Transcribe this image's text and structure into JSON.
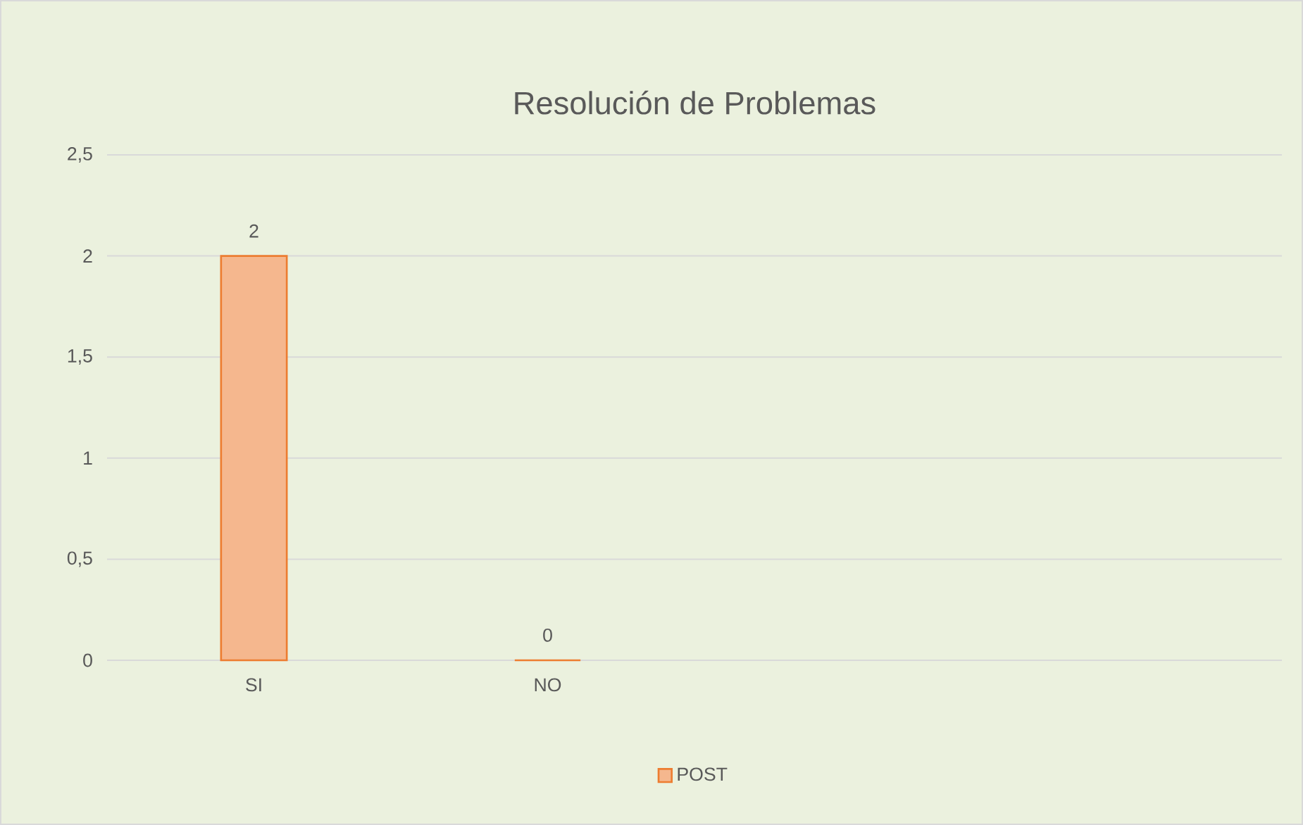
{
  "chart_data": {
    "type": "bar",
    "title": "Resolución de  Problemas",
    "categories": [
      "SI",
      "NO",
      null,
      null
    ],
    "series": [
      {
        "name": "POST",
        "color": "#ed7d31",
        "values": [
          2,
          0,
          null,
          null
        ]
      }
    ],
    "ylim": [
      0,
      2.5
    ],
    "yticks": [
      0,
      {
        "value": 0.5,
        "label": "0,5"
      },
      1,
      {
        "value": 1.5,
        "label": "1,5"
      },
      2,
      {
        "value": 2.5,
        "label": "2,5"
      }
    ],
    "grid": "y",
    "legend": "bottom",
    "data_labels": true
  }
}
